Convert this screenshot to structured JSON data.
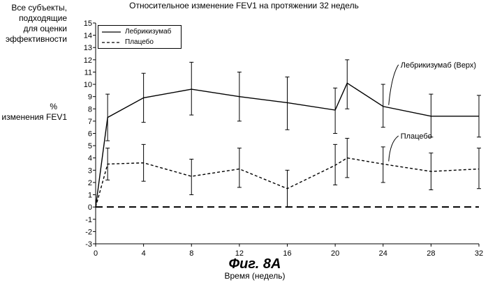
{
  "chart_data": {
    "type": "line",
    "title": "Относительное изменение FEV1 на протяжении 32 недель",
    "top_left_label": [
      "Все субъекты,",
      "подходящие",
      "для оценки",
      "эффективности"
    ],
    "ylabel": [
      "%",
      "изменения FEV1"
    ],
    "xlabel": "Время (недель)",
    "caption": "Фиг. 8А",
    "xlim": [
      0,
      32
    ],
    "ylim": [
      -3,
      15
    ],
    "x_ticks": [
      0,
      4,
      8,
      12,
      16,
      20,
      24,
      28,
      32
    ],
    "y_ticks": [
      -3,
      -2,
      -1,
      0,
      1,
      2,
      3,
      4,
      5,
      6,
      7,
      8,
      9,
      10,
      11,
      12,
      13,
      14,
      15
    ],
    "grid": false,
    "legend_position": "top-left",
    "reference_line": {
      "y": 0,
      "style": "dashed"
    },
    "series": [
      {
        "name": "Лебрикизумаб",
        "label": "Лебрикизумаб (Верх)",
        "style": "solid",
        "x": [
          0,
          1,
          4,
          8,
          12,
          16,
          20,
          21,
          24,
          28,
          32
        ],
        "y": [
          0,
          7.3,
          8.9,
          9.6,
          9.0,
          8.5,
          7.9,
          10.1,
          8.2,
          7.4,
          7.4
        ],
        "err_low": [
          null,
          5.4,
          6.9,
          7.5,
          7.0,
          6.3,
          6.0,
          8.0,
          6.5,
          5.7,
          5.7
        ],
        "err_high": [
          null,
          9.2,
          10.9,
          11.8,
          11.0,
          10.6,
          9.7,
          12.0,
          10.0,
          9.2,
          9.1
        ]
      },
      {
        "name": "Плацебо",
        "label": "Плацебо",
        "style": "dashed",
        "x": [
          0,
          1,
          4,
          8,
          12,
          16,
          20,
          21,
          24,
          28,
          32
        ],
        "y": [
          0,
          3.5,
          3.6,
          2.5,
          3.1,
          1.5,
          3.4,
          4.0,
          3.5,
          2.9,
          3.1
        ],
        "err_low": [
          null,
          2.2,
          2.1,
          1.0,
          1.6,
          0.0,
          1.8,
          2.4,
          2.0,
          1.4,
          1.5
        ],
        "err_high": [
          null,
          4.8,
          5.1,
          3.9,
          4.8,
          3.0,
          5.1,
          5.6,
          4.9,
          4.4,
          4.8
        ]
      }
    ]
  }
}
